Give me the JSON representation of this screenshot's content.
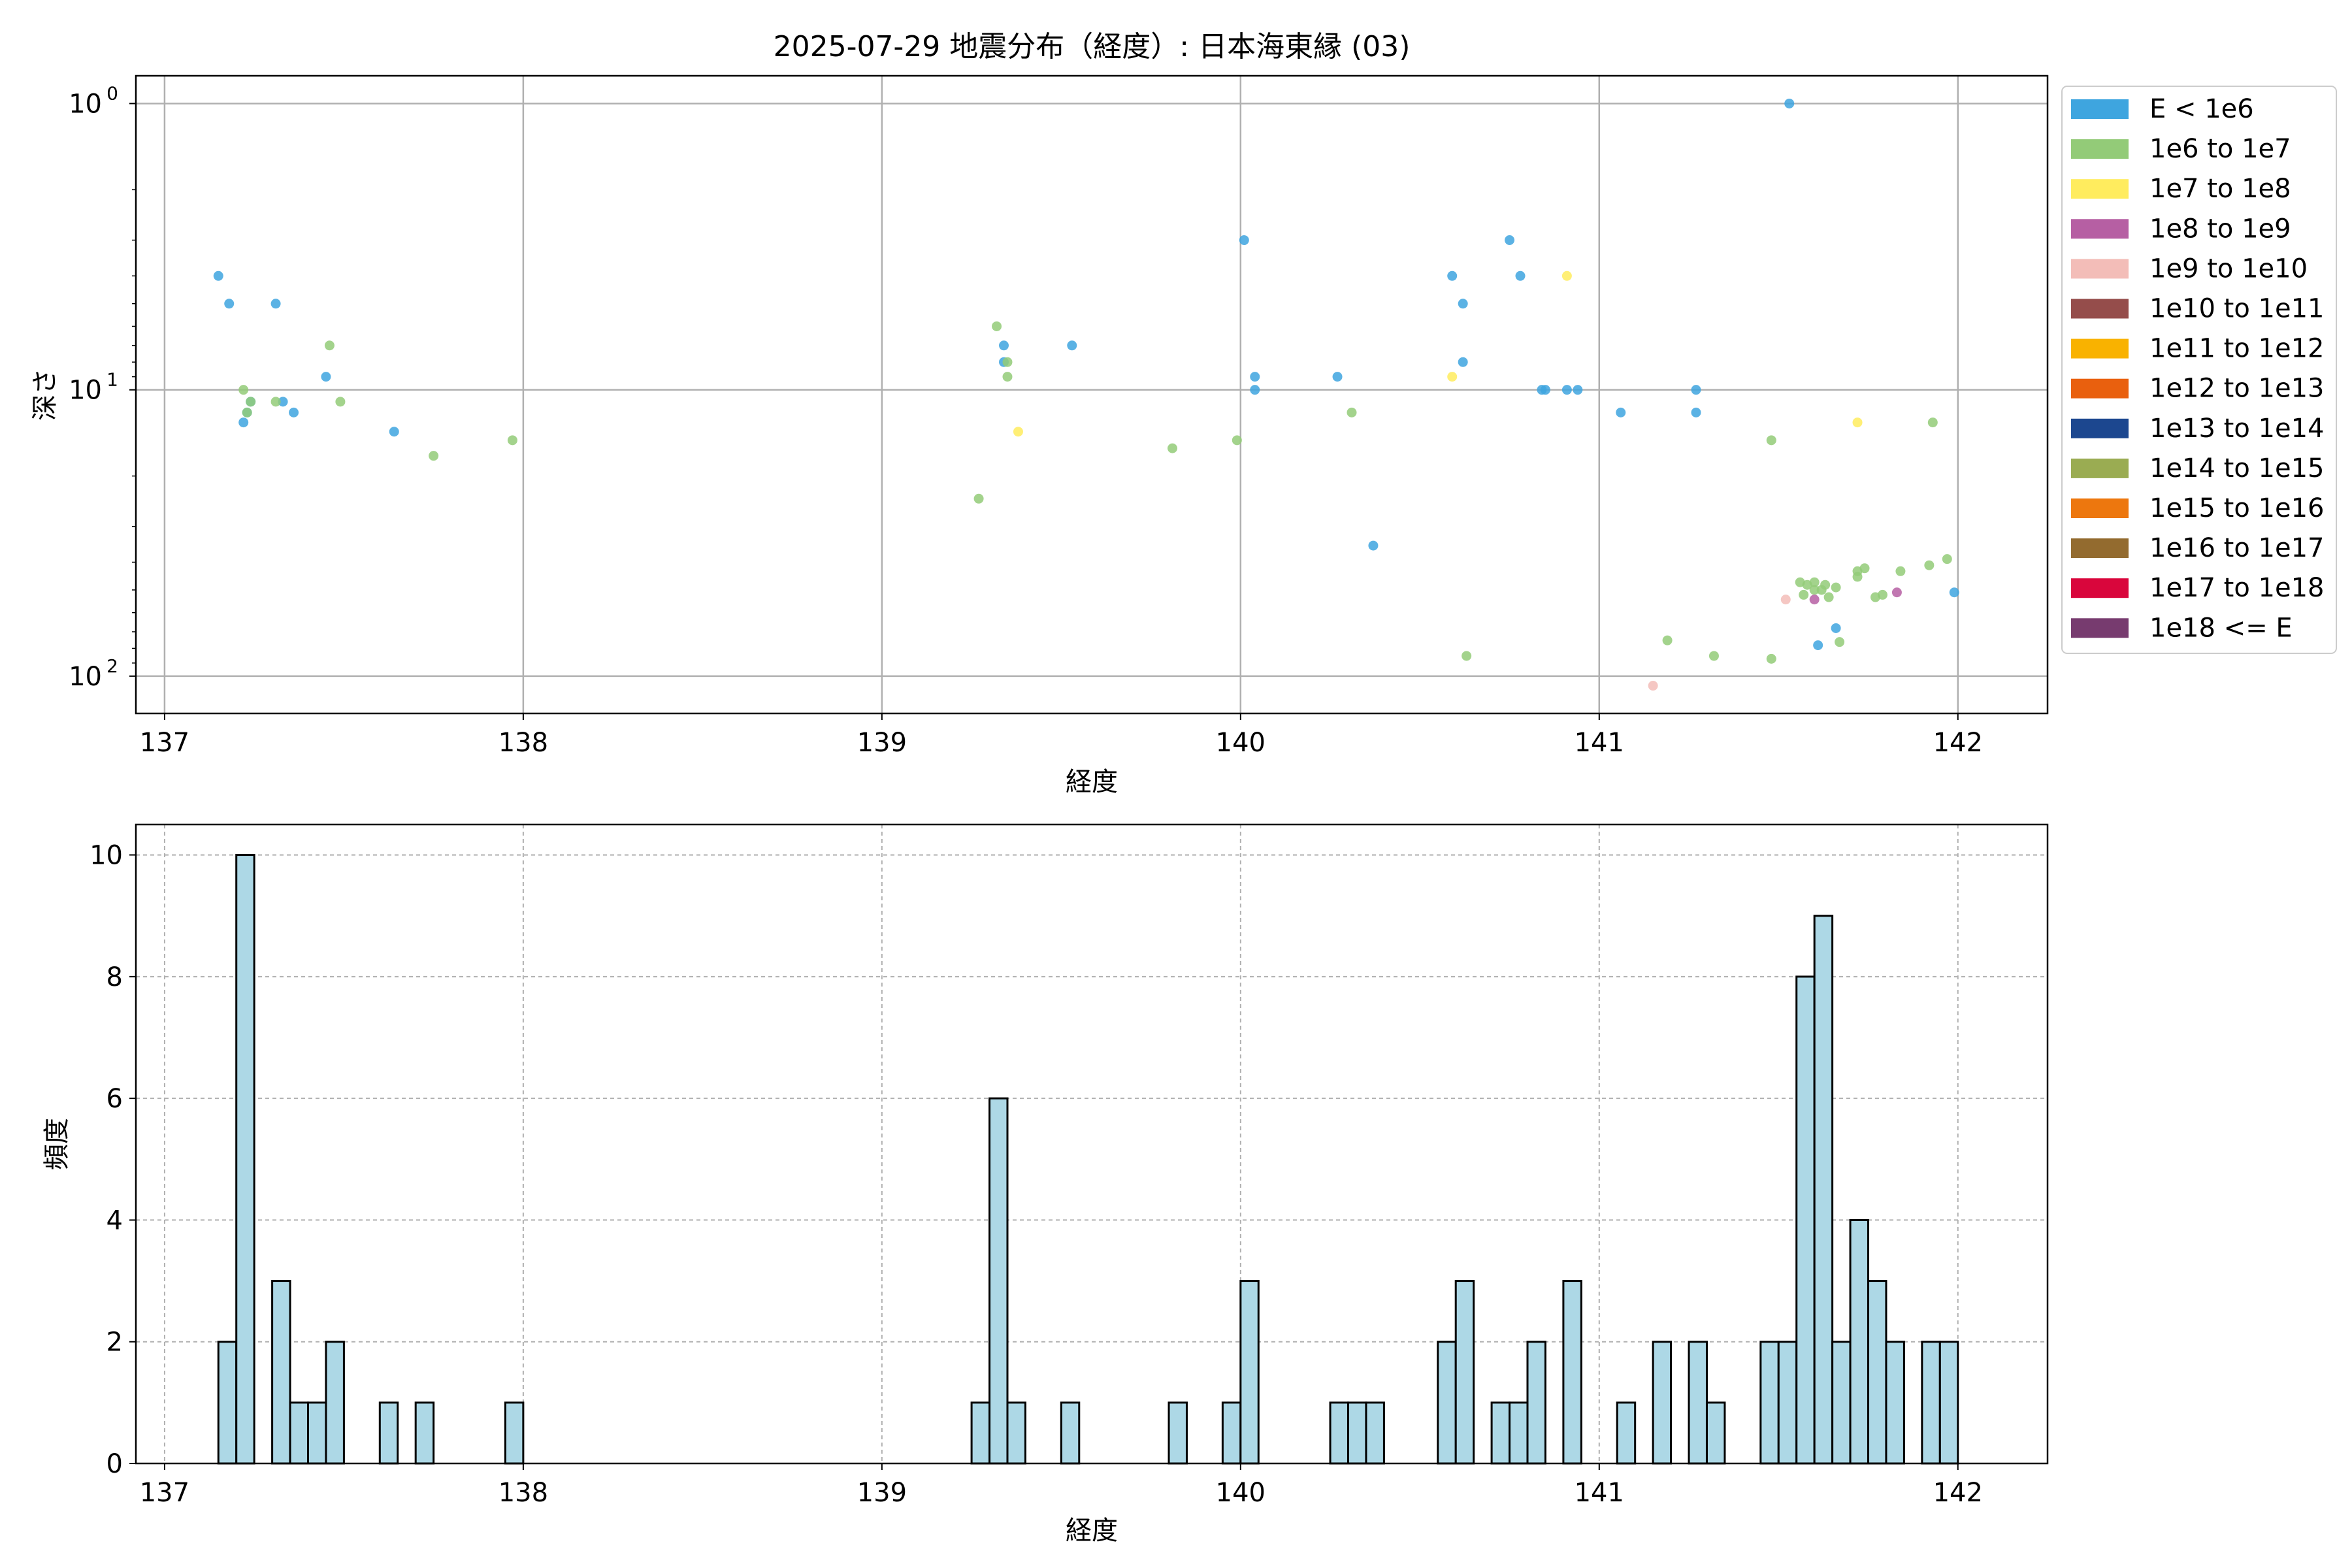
{
  "figure": {
    "title": "2025-07-29 地震分布（経度）: 日本海東縁 (03)"
  },
  "colors": {
    "E < 1e6": "#3ea5df",
    "1e6 to 1e7": "#93cb78",
    "1e7 to 1e8": "#ffec5e",
    "1e8 to 1e9": "#b65fa3",
    "1e9 to 1e10": "#f3bdb8",
    "1e10 to 1e11": "#954d4b",
    "1e11 to 1e12": "#f9b200",
    "1e12 to 1e13": "#e9600e",
    "1e13 to 1e14": "#1c478f",
    "1e14 to 1e15": "#9aac52",
    "1e15 to 1e16": "#ed770e",
    "1e16 to 1e17": "#936b2f",
    "1e17 to 1e18": "#d9063c",
    "1e18 <= E": "#773b6f"
  },
  "chart_data": [
    {
      "type": "scatter",
      "xlabel": "経度",
      "ylabel": "深さ",
      "xlim": [
        136.92,
        142.25
      ],
      "ylim": [
        135,
        0.8
      ],
      "yscale": "log",
      "y_inverted": true,
      "xticks": [
        "137",
        "138",
        "139",
        "140",
        "141",
        "142"
      ],
      "yticks": [
        "10^0",
        "10^1",
        "10^2"
      ],
      "grid": true,
      "legend_position": "outside-right",
      "legend": [
        "E < 1e6",
        "1e6 to 1e7",
        "1e7 to 1e8",
        "1e8 to 1e9",
        "1e9 to 1e10",
        "1e10 to 1e11",
        "1e11 to 1e12",
        "1e12 to 1e13",
        "1e13 to 1e14",
        "1e14 to 1e15",
        "1e15 to 1e16",
        "1e16 to 1e17",
        "1e17 to 1e18",
        "1e18 <= E"
      ],
      "series": [
        {
          "name": "E < 1e6",
          "points": [
            [
              137.15,
              4
            ],
            [
              137.18,
              5
            ],
            [
              137.31,
              5
            ],
            [
              137.45,
              9
            ],
            [
              137.23,
              12
            ],
            [
              137.24,
              11
            ],
            [
              137.22,
              13
            ],
            [
              137.33,
              11
            ],
            [
              137.36,
              12
            ],
            [
              137.64,
              14
            ],
            [
              139.34,
              7
            ],
            [
              139.34,
              8
            ],
            [
              139.53,
              7
            ],
            [
              140.01,
              3
            ],
            [
              140.04,
              9
            ],
            [
              140.04,
              10
            ],
            [
              140.27,
              9
            ],
            [
              140.37,
              35
            ],
            [
              140.59,
              4
            ],
            [
              140.62,
              5
            ],
            [
              140.62,
              8
            ],
            [
              140.75,
              3
            ],
            [
              140.78,
              4
            ],
            [
              140.84,
              10
            ],
            [
              140.85,
              10
            ],
            [
              140.91,
              10
            ],
            [
              140.94,
              10
            ],
            [
              141.06,
              12
            ],
            [
              141.27,
              10
            ],
            [
              141.27,
              12
            ],
            [
              141.53,
              1
            ],
            [
              141.61,
              78
            ],
            [
              141.66,
              68
            ],
            [
              141.99,
              51
            ]
          ]
        },
        {
          "name": "1e6 to 1e7",
          "points": [
            [
              137.22,
              10
            ],
            [
              137.24,
              11
            ],
            [
              137.23,
              12
            ],
            [
              137.31,
              11
            ],
            [
              137.46,
              7
            ],
            [
              137.49,
              11
            ],
            [
              137.75,
              17
            ],
            [
              137.97,
              15
            ],
            [
              139.27,
              24
            ],
            [
              139.32,
              6
            ],
            [
              139.35,
              8
            ],
            [
              139.35,
              9
            ],
            [
              139.81,
              16
            ],
            [
              139.99,
              15
            ],
            [
              140.31,
              12
            ],
            [
              140.63,
              85
            ],
            [
              141.19,
              75
            ],
            [
              141.32,
              85
            ],
            [
              141.48,
              15
            ],
            [
              141.48,
              87
            ],
            [
              141.56,
              47
            ],
            [
              141.58,
              48
            ],
            [
              141.6,
              47
            ],
            [
              141.62,
              50
            ],
            [
              141.63,
              48
            ],
            [
              141.64,
              53
            ],
            [
              141.66,
              49
            ],
            [
              141.72,
              43
            ],
            [
              141.74,
              42
            ],
            [
              141.72,
              45
            ],
            [
              141.77,
              53
            ],
            [
              141.79,
              52
            ],
            [
              141.84,
              43
            ],
            [
              141.92,
              41
            ],
            [
              141.93,
              13
            ],
            [
              141.97,
              39
            ],
            [
              141.67,
              76
            ],
            [
              141.6,
              50
            ],
            [
              141.57,
              52
            ]
          ]
        },
        {
          "name": "1e7 to 1e8",
          "points": [
            [
              139.38,
              14
            ],
            [
              140.59,
              9
            ],
            [
              140.91,
              4
            ],
            [
              141.72,
              13
            ]
          ]
        },
        {
          "name": "1e8 to 1e9",
          "points": [
            [
              141.6,
              54
            ],
            [
              141.83,
              51
            ]
          ]
        },
        {
          "name": "1e9 to 1e10",
          "points": [
            [
              141.15,
              108
            ],
            [
              141.52,
              54
            ]
          ]
        }
      ]
    },
    {
      "type": "bar",
      "xlabel": "経度",
      "ylabel": "頻度",
      "xlim": [
        136.92,
        142.25
      ],
      "ylim": [
        0,
        10.5
      ],
      "xticks": [
        "137",
        "138",
        "139",
        "140",
        "141",
        "142"
      ],
      "yticks": [
        "0",
        "2",
        "4",
        "6",
        "8",
        "10"
      ],
      "grid": true,
      "bin_width": 0.05,
      "bars": [
        [
          137.15,
          2
        ],
        [
          137.2,
          10
        ],
        [
          137.3,
          3
        ],
        [
          137.35,
          1
        ],
        [
          137.4,
          1
        ],
        [
          137.45,
          2
        ],
        [
          137.6,
          1
        ],
        [
          137.7,
          1
        ],
        [
          137.95,
          1
        ],
        [
          139.25,
          1
        ],
        [
          139.3,
          6
        ],
        [
          139.35,
          1
        ],
        [
          139.5,
          1
        ],
        [
          139.8,
          1
        ],
        [
          139.95,
          1
        ],
        [
          140.0,
          3
        ],
        [
          140.25,
          1
        ],
        [
          140.3,
          1
        ],
        [
          140.35,
          1
        ],
        [
          140.55,
          2
        ],
        [
          140.6,
          3
        ],
        [
          140.7,
          1
        ],
        [
          140.75,
          1
        ],
        [
          140.8,
          2
        ],
        [
          140.9,
          3
        ],
        [
          141.05,
          1
        ],
        [
          141.15,
          2
        ],
        [
          141.25,
          2
        ],
        [
          141.3,
          1
        ],
        [
          141.45,
          2
        ],
        [
          141.5,
          2
        ],
        [
          141.55,
          8
        ],
        [
          141.6,
          9
        ],
        [
          141.65,
          2
        ],
        [
          141.7,
          4
        ],
        [
          141.75,
          3
        ],
        [
          141.8,
          2
        ],
        [
          141.9,
          2
        ],
        [
          141.95,
          2
        ]
      ]
    }
  ]
}
